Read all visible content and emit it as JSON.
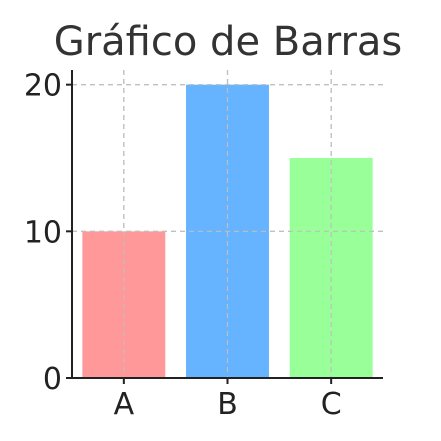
{
  "chart_data": {
    "type": "bar",
    "title": "Gráfico de Barras",
    "xlabel": "",
    "ylabel": "",
    "categories": [
      "A",
      "B",
      "C"
    ],
    "values": [
      10,
      20,
      15
    ],
    "colors": [
      "#ff9999",
      "#66b3ff",
      "#99ff99"
    ],
    "ylim": [
      0,
      21
    ],
    "yticks": [
      0,
      10,
      20
    ],
    "grid": true,
    "grid_style": "dashed",
    "legend": false
  }
}
